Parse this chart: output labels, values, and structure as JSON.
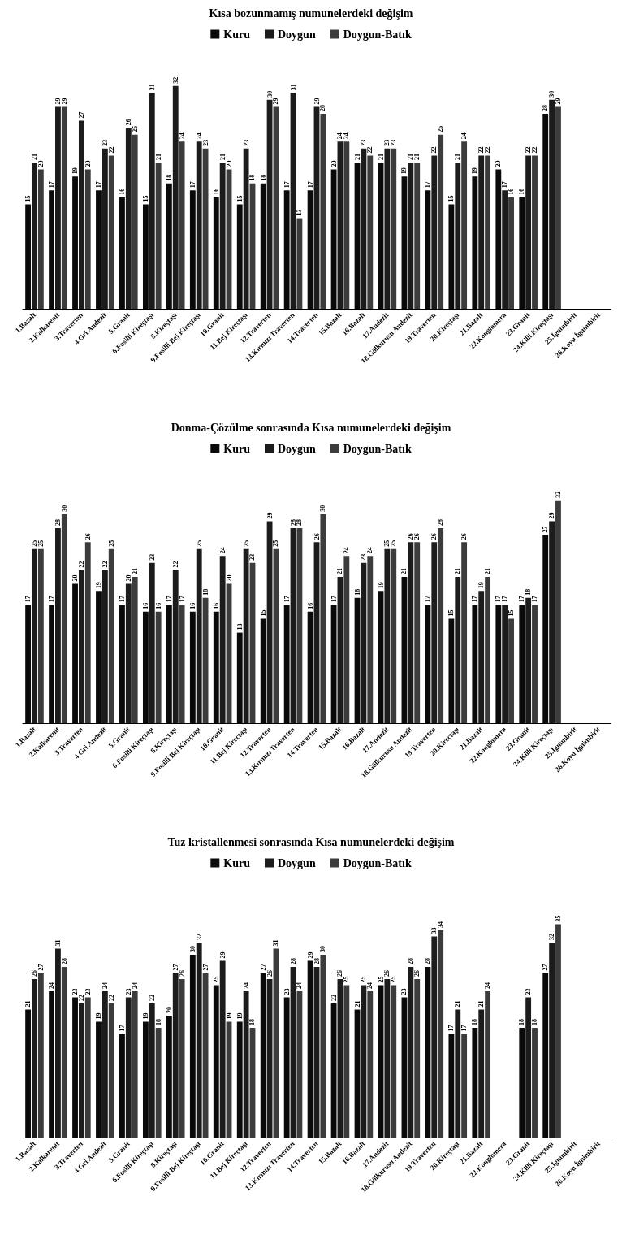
{
  "chart_data": [
    {
      "type": "bar",
      "title": "Kısa bozunmamış numunelerdeki değişim",
      "legend": "top",
      "data_labels": true,
      "categories": [
        "1.Bazalt",
        "2.Kalkarenit",
        "3.Traverten",
        "4.Gri Andezit",
        "5.Granit",
        "6.Fosilli Kireçtaşı",
        "8.Kireçtaşı",
        "9.Fosilli Bej Kireçtaşı",
        "10.Granit",
        "11.Bej Kireçtaşı",
        "12.Traverten",
        "13.Kırmızı Traverten",
        "14.Traverten",
        "15.Bazalt",
        "16.Bazalt",
        "17.Andezit",
        "18.Gölkurusu Andezit",
        "19.Traverten",
        "20.Kireçtaşı",
        "21.Bazalt",
        "22.Konglomera",
        "23.Granit",
        "24.Killi Kireçtaşı",
        "25.İgnimbirit",
        "26.Koyu İgnimbirit"
      ],
      "series": [
        {
          "name": "Kuru",
          "color": "#0a0a0a",
          "values": [
            15,
            17,
            19,
            17,
            16,
            15,
            18,
            17,
            16,
            15,
            18,
            17,
            17,
            20,
            21,
            21,
            19,
            17,
            15,
            19,
            20,
            16,
            28,
            null,
            null
          ]
        },
        {
          "name": "Doygun",
          "color": "#1c1c1c",
          "values": [
            21,
            29,
            27,
            23,
            26,
            31,
            32,
            24,
            21,
            23,
            30,
            31,
            29,
            24,
            23,
            23,
            21,
            22,
            21,
            22,
            17,
            22,
            30,
            null,
            null
          ]
        },
        {
          "name": "Doygun-Batık",
          "color": "#3c3c3c",
          "values": [
            20,
            29,
            20,
            22,
            25,
            21,
            24,
            23,
            20,
            18,
            29,
            13,
            28,
            24,
            22,
            23,
            21,
            25,
            24,
            22,
            16,
            22,
            29,
            null,
            null
          ]
        }
      ]
    },
    {
      "type": "bar",
      "title": "Donma-Çözülme sonrasında Kısa numunelerdeki değişim",
      "legend": "top",
      "data_labels": true,
      "categories": [
        "1.Bazalt",
        "2.Kalkarenit",
        "3.Traverten",
        "4.Gri Andezit",
        "5.Granit",
        "6.Fosilli Kireçtaşı",
        "8.Kireçtaşı",
        "9.Fosilli Bej Kireçtaşı",
        "10.Granit",
        "11.Bej Kireçtaşı",
        "12.Traverten",
        "13.Kırmızı Traverten",
        "14.Traverten",
        "15.Bazalt",
        "16.Bazalt",
        "17.Andezit",
        "18.Gölkurusu Andezit",
        "19.Traverten",
        "20.Kireçtaşı",
        "21.Bazalt",
        "22.Konglomera",
        "23.Granit",
        "24.Killi Kireçtaşı",
        "25.İgnimbirit",
        "26.Koyu İgnimbirit"
      ],
      "series": [
        {
          "name": "Kuru",
          "color": "#0a0a0a",
          "values": [
            17,
            17,
            20,
            19,
            17,
            16,
            17,
            16,
            16,
            13,
            15,
            17,
            16,
            17,
            18,
            19,
            21,
            17,
            15,
            17,
            17,
            17,
            27,
            null,
            null
          ]
        },
        {
          "name": "Doygun",
          "color": "#1c1c1c",
          "values": [
            25,
            28,
            22,
            22,
            20,
            23,
            22,
            25,
            24,
            25,
            29,
            28,
            26,
            21,
            23,
            25,
            26,
            26,
            21,
            19,
            17,
            18,
            29,
            null,
            null
          ]
        },
        {
          "name": "Doygun-Batık",
          "color": "#3c3c3c",
          "values": [
            25,
            30,
            26,
            25,
            21,
            16,
            17,
            18,
            20,
            23,
            25,
            28,
            30,
            24,
            24,
            25,
            26,
            28,
            26,
            21,
            15,
            17,
            32,
            null,
            null
          ]
        }
      ]
    },
    {
      "type": "bar",
      "title": "Tuz kristallenmesi sonrasında Kısa numunelerdeki değişim",
      "legend": "top",
      "data_labels": true,
      "categories": [
        "1.Bazalt",
        "2.Kalkarenit",
        "3.Traverten",
        "4.Gri Andezit",
        "5.Granit",
        "6.Fosilli Kireçtaşı",
        "8.Kireçtaşı",
        "9.Fosilli Bej Kireçtaşı",
        "10.Granit",
        "11.Bej Kireçtaşı",
        "12.Traverten",
        "13.Kırmızı Traverten",
        "14.Traverten",
        "15.Bazalt",
        "16.Bazalt",
        "17.Andezit",
        "18.Gölkurusu Andezit",
        "19.Traverten",
        "20.Kireçtaşı",
        "21.Bazalt",
        "22.Konglomera",
        "23.Granit",
        "24.Killi Kireçtaşı",
        "25.İgnimbirit",
        "26.Koyu İgnimbirit"
      ],
      "series": [
        {
          "name": "Kuru",
          "color": "#0a0a0a",
          "values": [
            21,
            24,
            23,
            19,
            17,
            19,
            20,
            30,
            25,
            19,
            27,
            23,
            29,
            22,
            21,
            25,
            23,
            28,
            17,
            18,
            null,
            18,
            27,
            null,
            null
          ]
        },
        {
          "name": "Doygun",
          "color": "#1c1c1c",
          "values": [
            26,
            31,
            22,
            24,
            23,
            22,
            27,
            32,
            29,
            24,
            26,
            28,
            28,
            26,
            25,
            26,
            28,
            33,
            21,
            21,
            null,
            23,
            32,
            null,
            null
          ]
        },
        {
          "name": "Doygun-Batık",
          "color": "#3c3c3c",
          "values": [
            27,
            28,
            23,
            22,
            24,
            18,
            26,
            27,
            19,
            18,
            31,
            24,
            30,
            25,
            24,
            25,
            26,
            34,
            17,
            24,
            null,
            18,
            35,
            null,
            null
          ]
        }
      ]
    }
  ]
}
